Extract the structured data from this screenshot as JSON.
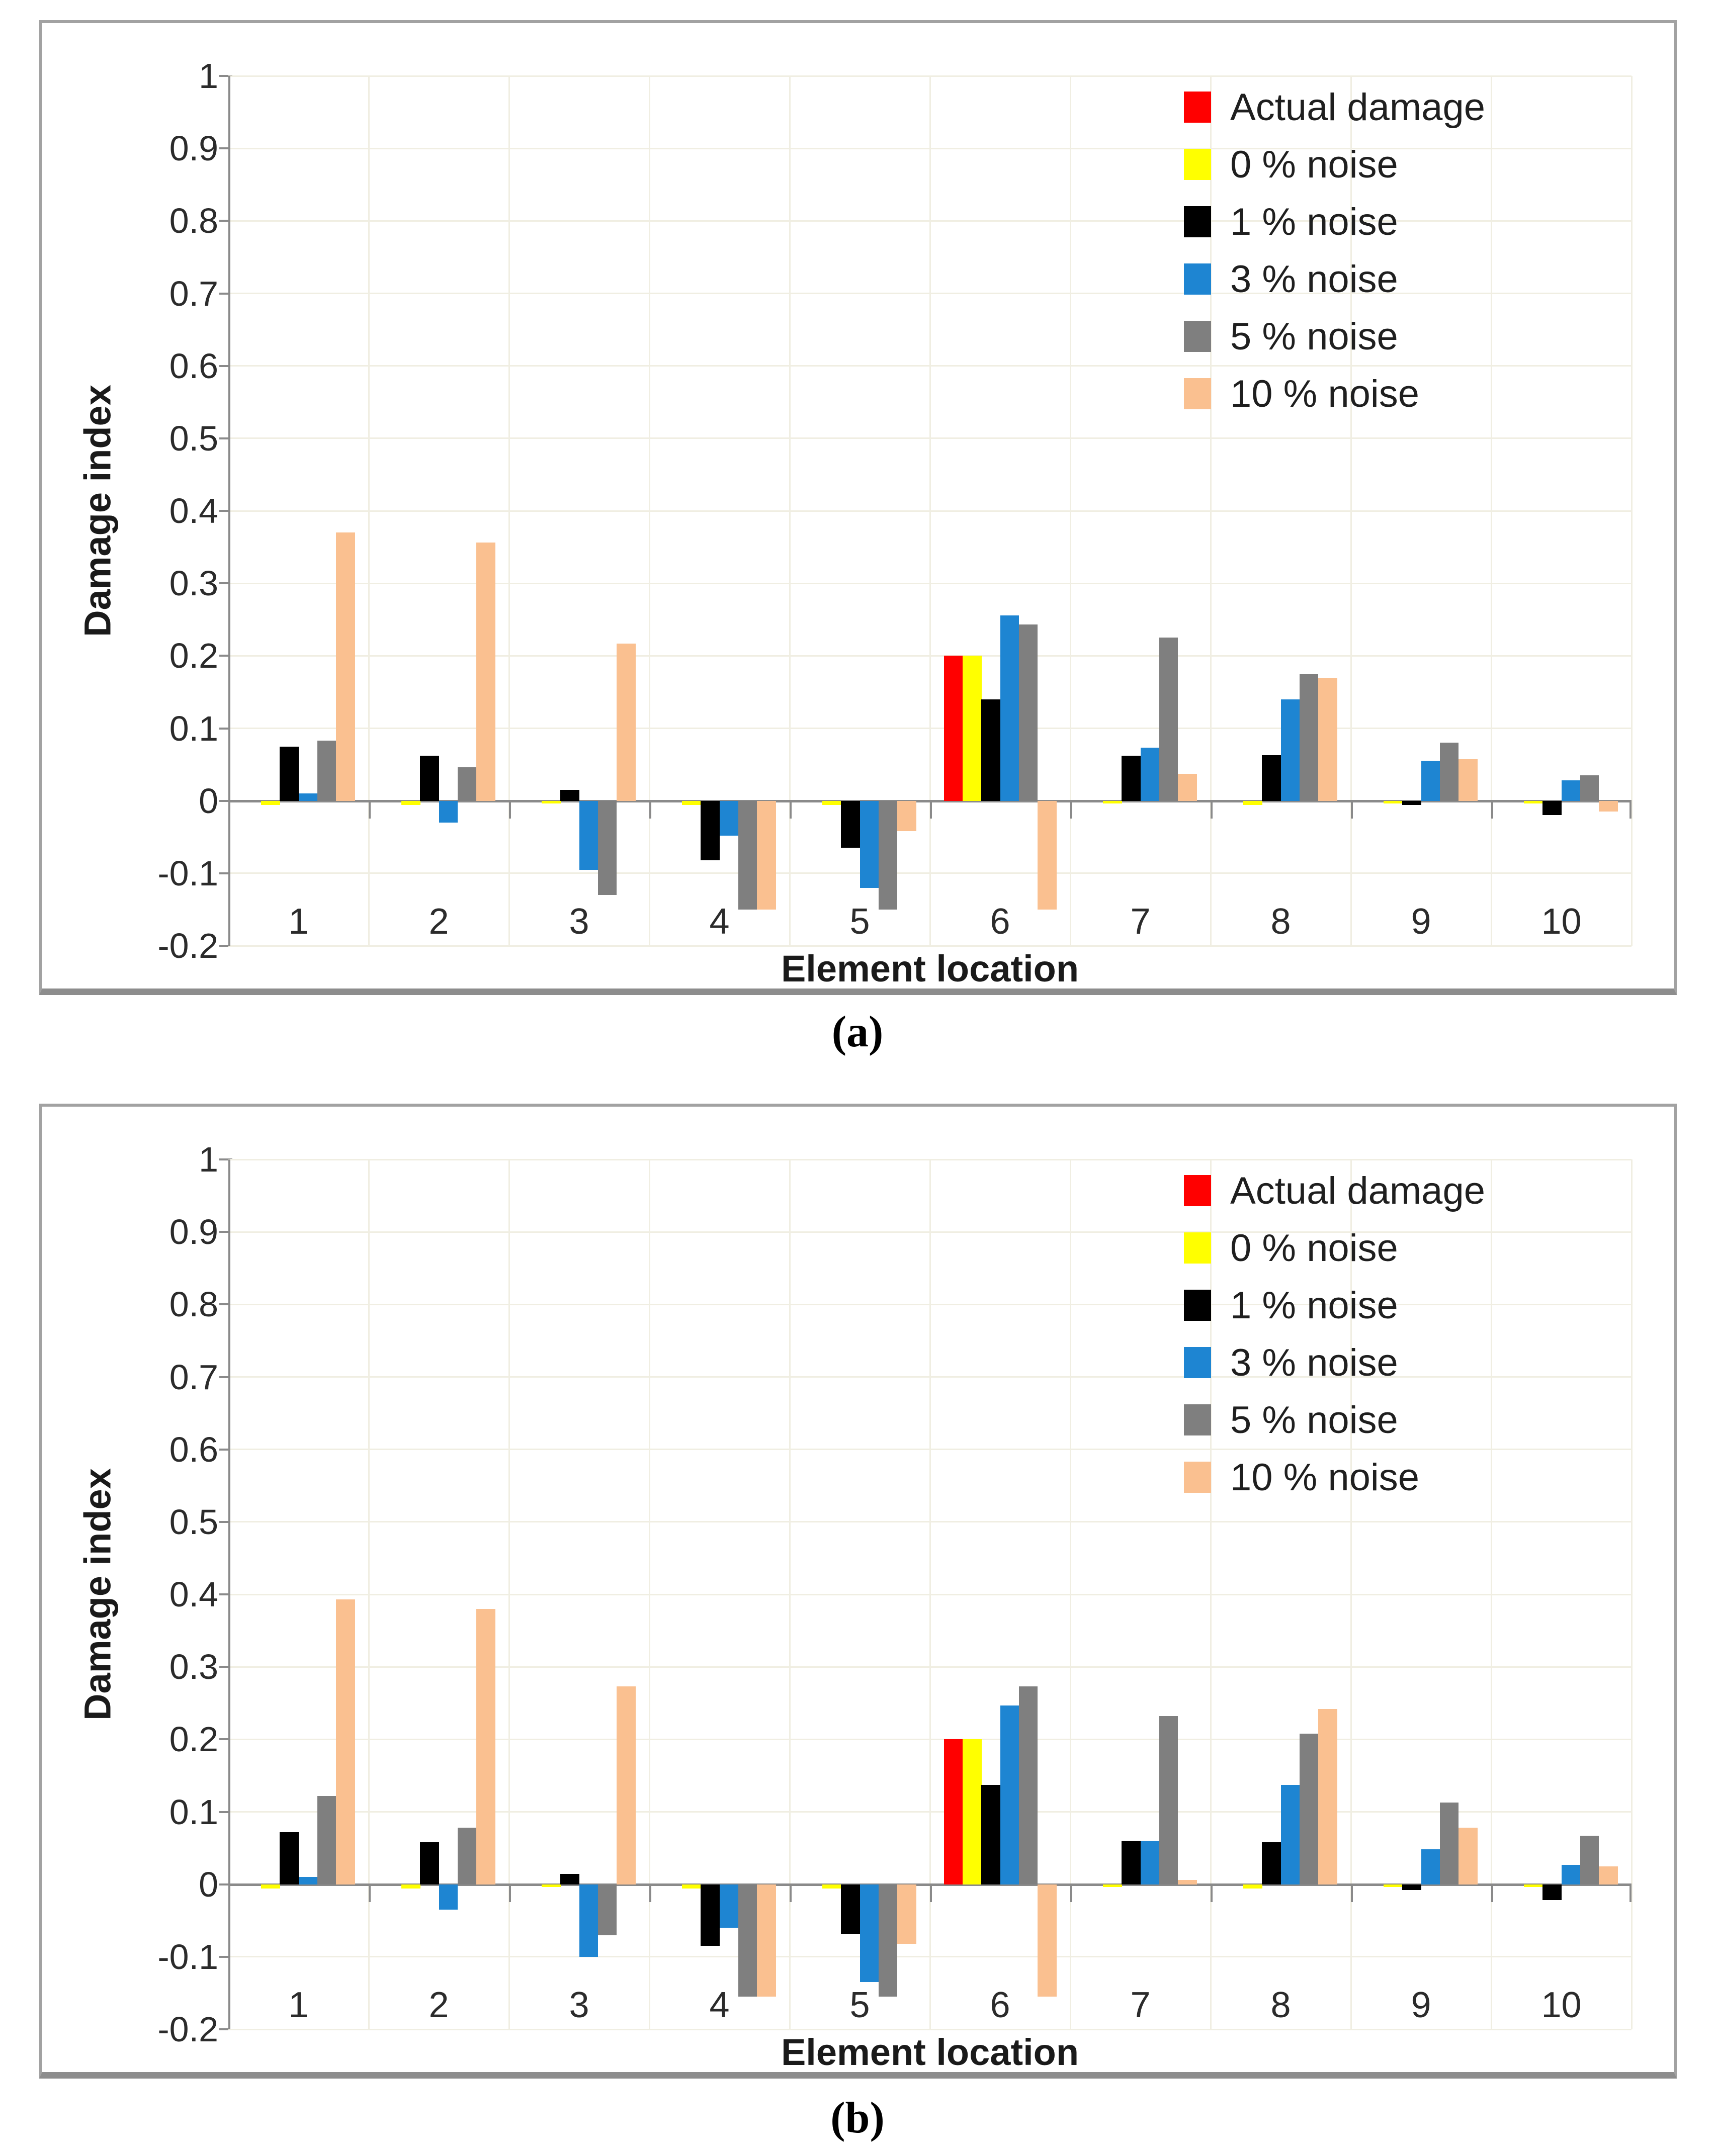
{
  "figure": {
    "description": "Two stacked bar charts comparing identified damage index with actual damage under different noise levels"
  },
  "chart_data": [
    {
      "type": "bar",
      "panel_label": "(a)",
      "xlabel": "Element location",
      "ylabel": "Damage index",
      "ylim": [
        -0.2,
        1
      ],
      "ytick_labels": [
        "1",
        "0.9",
        "0.8",
        "0.7",
        "0.6",
        "0.5",
        "0.4",
        "0.3",
        "0.2",
        "0.1",
        "0",
        "-0.1",
        "-0.2"
      ],
      "categories": [
        "1",
        "2",
        "3",
        "4",
        "5",
        "6",
        "7",
        "8",
        "9",
        "10"
      ],
      "grid": true,
      "legend_position": "top-right",
      "colors": {
        "grid": "#F0EEE2",
        "axis": "#8a8a8a",
        "tick_text": "#2b2b2b"
      },
      "series": [
        {
          "name": "Actual damage",
          "color": "#FF0000",
          "values": [
            0,
            0,
            0,
            0,
            0,
            0.2,
            0,
            0,
            0,
            0
          ]
        },
        {
          "name": "0 % noise",
          "color": "#FFFF00",
          "values": [
            -0.006,
            -0.006,
            -0.004,
            -0.006,
            -0.006,
            0.2,
            -0.004,
            -0.006,
            -0.004,
            -0.004
          ]
        },
        {
          "name": "1 % noise",
          "color": "#000000",
          "values": [
            0.075,
            0.062,
            0.015,
            -0.082,
            -0.065,
            0.14,
            0.062,
            0.063,
            -0.006,
            -0.02
          ]
        },
        {
          "name": "3 % noise",
          "color": "#1E85D2",
          "values": [
            0.01,
            -0.03,
            -0.095,
            -0.048,
            -0.12,
            0.256,
            0.073,
            0.14,
            0.055,
            0.028
          ]
        },
        {
          "name": "5 % noise",
          "color": "#7F7F7F",
          "values": [
            0.083,
            0.046,
            -0.13,
            -0.15,
            -0.15,
            0.243,
            0.225,
            0.175,
            0.08,
            0.035
          ]
        },
        {
          "name": "10 % noise",
          "color": "#FAC090",
          "values": [
            0.37,
            0.356,
            0.217,
            -0.15,
            -0.042,
            -0.15,
            0.037,
            0.17,
            0.057,
            -0.015
          ]
        }
      ]
    },
    {
      "type": "bar",
      "panel_label": "(b)",
      "xlabel": "Element location",
      "ylabel": "Damage index",
      "ylim": [
        -0.2,
        1
      ],
      "ytick_labels": [
        "1",
        "0.9",
        "0.8",
        "0.7",
        "0.6",
        "0.5",
        "0.4",
        "0.3",
        "0.2",
        "0.1",
        "0",
        "-0.1",
        "-0.2"
      ],
      "categories": [
        "1",
        "2",
        "3",
        "4",
        "5",
        "6",
        "7",
        "8",
        "9",
        "10"
      ],
      "grid": true,
      "legend_position": "top-right",
      "colors": {
        "grid": "#F0EEE2",
        "axis": "#8a8a8a",
        "tick_text": "#2b2b2b"
      },
      "series": [
        {
          "name": "Actual damage",
          "color": "#FF0000",
          "values": [
            0,
            0,
            0,
            0,
            0,
            0.2,
            0,
            0,
            0,
            0
          ]
        },
        {
          "name": "0 % noise",
          "color": "#FFFF00",
          "values": [
            -0.006,
            -0.006,
            -0.004,
            -0.006,
            -0.006,
            0.2,
            -0.004,
            -0.006,
            -0.004,
            -0.004
          ]
        },
        {
          "name": "1 % noise",
          "color": "#000000",
          "values": [
            0.072,
            0.058,
            0.014,
            -0.085,
            -0.068,
            0.137,
            0.06,
            0.058,
            -0.008,
            -0.022
          ]
        },
        {
          "name": "3 % noise",
          "color": "#1E85D2",
          "values": [
            0.01,
            -0.035,
            -0.1,
            -0.06,
            -0.135,
            0.247,
            0.06,
            0.137,
            0.048,
            0.027
          ]
        },
        {
          "name": "5 % noise",
          "color": "#7F7F7F",
          "values": [
            0.122,
            0.078,
            -0.07,
            -0.155,
            -0.155,
            0.273,
            0.232,
            0.208,
            0.113,
            0.067
          ]
        },
        {
          "name": "10 % noise",
          "color": "#FAC090",
          "values": [
            0.393,
            0.38,
            0.273,
            -0.155,
            -0.082,
            -0.155,
            0.006,
            0.242,
            0.078,
            0.025
          ]
        }
      ]
    }
  ]
}
